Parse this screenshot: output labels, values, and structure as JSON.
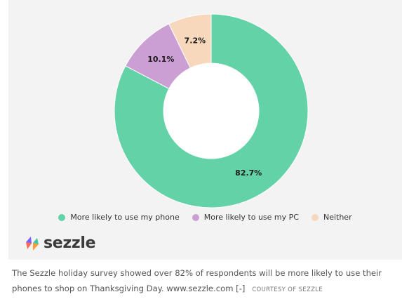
{
  "chart_data": {
    "type": "pie",
    "donut": true,
    "categories": [
      "More likely to use my phone",
      "More likely to use my PC",
      "Neither"
    ],
    "values": [
      82.7,
      10.1,
      7.2
    ],
    "value_labels": [
      "82.7%",
      "10.1%",
      "7.2%"
    ],
    "colors": [
      "#63d2a6",
      "#cb9fd4",
      "#f8d8bc"
    ],
    "legend_position": "bottom"
  },
  "logo": {
    "text": "sezzle"
  },
  "caption": {
    "text": "The Sezzle holiday survey showed over 82% of respondents will be more likely to use their phones to shop on Thanksgiving Day. www.sezzle.com [-]",
    "credit": "COURTESY OF SEZZLE"
  }
}
